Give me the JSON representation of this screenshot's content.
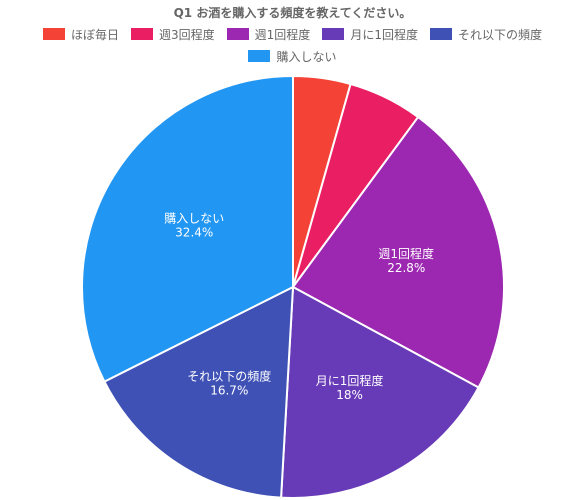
{
  "chart_data": {
    "type": "pie",
    "title": "Q1 お酒を購入する頻度を教えてください。",
    "categories": [
      "ほぼ毎日",
      "週3回程度",
      "週1回程度",
      "月に1回程度",
      "それ以下の頻度",
      "購入しない"
    ],
    "values": [
      4.4,
      5.7,
      22.8,
      18,
      16.7,
      32.4
    ],
    "value_labels": [
      null,
      null,
      "22.8%",
      "18%",
      "16.7%",
      "32.4%"
    ],
    "colors": [
      "#f44336",
      "#e91e63",
      "#9c27b0",
      "#673ab7",
      "#3f51b5",
      "#2196f3"
    ]
  }
}
